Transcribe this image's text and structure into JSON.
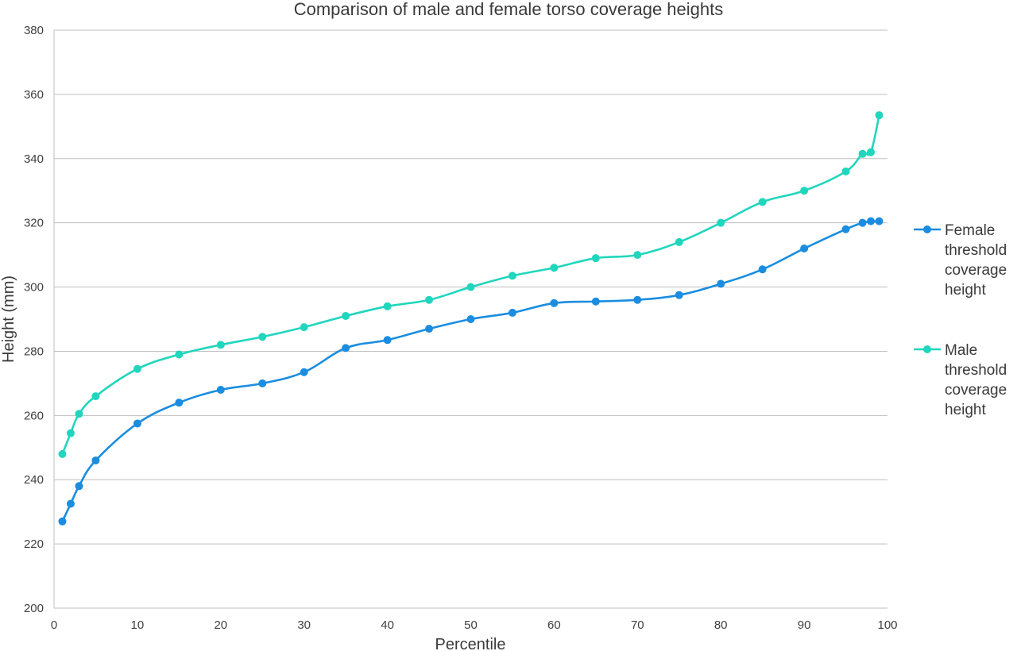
{
  "chart_data": {
    "type": "line",
    "title": "Comparison of male and female torso coverage heights",
    "xlabel": "Percentile",
    "ylabel": "Height (mm)",
    "xlim": [
      0,
      100
    ],
    "ylim": [
      200,
      380
    ],
    "x_ticks": [
      0,
      10,
      20,
      30,
      40,
      50,
      60,
      70,
      80,
      90,
      100
    ],
    "y_ticks": [
      200,
      220,
      240,
      260,
      280,
      300,
      320,
      340,
      360,
      380
    ],
    "grid": true,
    "legend_position": "right",
    "x": [
      1,
      2,
      3,
      5,
      10,
      15,
      20,
      25,
      30,
      35,
      40,
      45,
      50,
      55,
      60,
      65,
      70,
      75,
      80,
      85,
      90,
      95,
      97,
      98,
      99
    ],
    "series": [
      {
        "name": "Female threshold coverage height",
        "legend_lines": [
          "Female",
          "threshold",
          "coverage",
          "height"
        ],
        "color": "#1a8de0",
        "values": [
          227,
          232.5,
          238,
          246,
          257.5,
          264,
          268,
          270,
          273.5,
          281,
          283.5,
          287,
          290,
          292,
          295,
          295.5,
          296,
          297.5,
          301,
          305.5,
          312,
          318,
          320,
          320.5,
          320.5
        ]
      },
      {
        "name": "Male threshold coverage height",
        "legend_lines": [
          "Male",
          "threshold",
          "coverage",
          "height"
        ],
        "color": "#20d6bd",
        "values": [
          248,
          254.5,
          260.5,
          266,
          274.5,
          279,
          282,
          284.5,
          287.5,
          291,
          294,
          296,
          300,
          303.5,
          306,
          309,
          310,
          314,
          320,
          326.5,
          330,
          336,
          341.5,
          342,
          353.5
        ]
      }
    ]
  }
}
